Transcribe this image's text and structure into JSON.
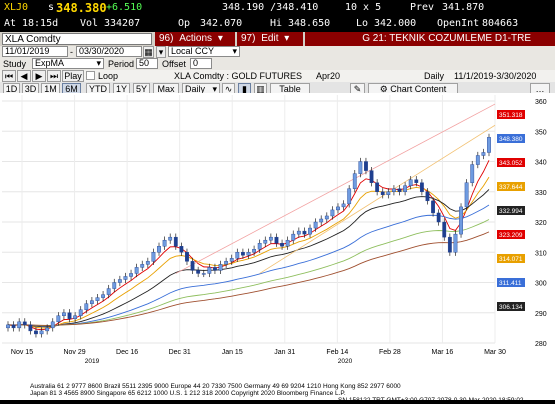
{
  "quote": {
    "ticker": "XLJ0",
    "price_prefix": "s",
    "price": "348.380",
    "change": "+6.510",
    "bid_ask": "348.190 /348.410",
    "lot": "10 x 5",
    "prev_label": "Prev",
    "prev": "341.870",
    "at_label": "At",
    "time": "18:15d",
    "vol_label": "Vol",
    "vol": "334207",
    "op_label": "Op",
    "op": "342.070",
    "hi_label": "Hi",
    "hi": "348.650",
    "lo_label": "Lo",
    "lo": "342.000",
    "oi_label": "OpenInt",
    "oi": "804663"
  },
  "toolbar": {
    "security": "XLA Comdty",
    "actions_num": "96)",
    "actions": "Actions",
    "edit_num": "97)",
    "edit": "Edit",
    "title": "G 21: TEKNIK COZUMLEME D1-TRE",
    "date_from": "11/01/2019",
    "date_to": "03/30/2020",
    "ccy": "Local CCY",
    "study_label": "Study",
    "study": "ExpMA",
    "period_label": "Period",
    "period": "50",
    "offset_label": "Offset",
    "offset": "0",
    "play": "Play",
    "loop": "Loop",
    "chart_name": "XLA Comdty : GOLD FUTURES",
    "contract": "Apr20",
    "freq": "Daily",
    "range": "11/1/2019-3/30/2020",
    "periods": [
      "1D",
      "3D",
      "1M",
      "6M",
      "YTD",
      "1Y",
      "5Y",
      "Max"
    ],
    "active_period": "6M",
    "daily": "Daily",
    "table": "Table",
    "chart_content": "Chart Content"
  },
  "chart_data": {
    "type": "candlestick",
    "ylim": [
      280,
      362
    ],
    "y_ticks": [
      "360",
      "350",
      "340",
      "330",
      "320",
      "310",
      "300",
      "290",
      "280"
    ],
    "x_ticks": [
      "Nov 15",
      "Nov 29",
      "Dec 16",
      "Dec 31",
      "Jan 15",
      "Jan 31",
      "Feb 14",
      "Feb 28",
      "Mar 16",
      "Mar 30"
    ],
    "year_labels": [
      "2019",
      "2020"
    ],
    "value_tags": [
      {
        "text": "351.318",
        "color": "#e00000"
      },
      {
        "text": "348.380",
        "color": "#3a6fd8"
      },
      {
        "text": "343.052",
        "color": "#e00000"
      },
      {
        "text": "337.644",
        "color": "#e8a000"
      },
      {
        "text": "332.994",
        "color": "#222222"
      },
      {
        "text": "323.209",
        "color": "#e00000"
      },
      {
        "text": "314.071",
        "color": "#e8a000"
      },
      {
        "text": "311.411",
        "color": "#3a6fd8"
      },
      {
        "text": "306.134",
        "color": "#222222"
      }
    ],
    "close": [
      286,
      285,
      287,
      286,
      284,
      283,
      284,
      285,
      287,
      289,
      290,
      288,
      289,
      291,
      293,
      294,
      295,
      296,
      298,
      300,
      301,
      302,
      303,
      305,
      306,
      307,
      310,
      312,
      314,
      315,
      312,
      310,
      307,
      304,
      303,
      303,
      305,
      304,
      306,
      307,
      308,
      310,
      309,
      310,
      311,
      313,
      314,
      315,
      313,
      312,
      314,
      316,
      317,
      316,
      318,
      320,
      321,
      322,
      324,
      325,
      326,
      331,
      336,
      340,
      337,
      333,
      330,
      329,
      330,
      331,
      330,
      332,
      334,
      333,
      330,
      327,
      323,
      320,
      315,
      310,
      316,
      325,
      333,
      339,
      342,
      343,
      348
    ]
  },
  "footer": {
    "line1": "Australia 61 2 9777 8600  Brazil 5511 2395 9000  Europe 44 20 7330 7500  Germany 49 69 9204 1210  Hong Kong 852 2977 6000",
    "line2": "Japan 81 3 4565 8900      Singapore 65 6212 1000    U.S. 1 212 318 2000          Copyright 2020 Bloomberg Finance L.P.",
    "line3": "SN 158122 TRT  GMT+3:00 G707-2078-0 30-Mar-2020 18:59:02"
  }
}
